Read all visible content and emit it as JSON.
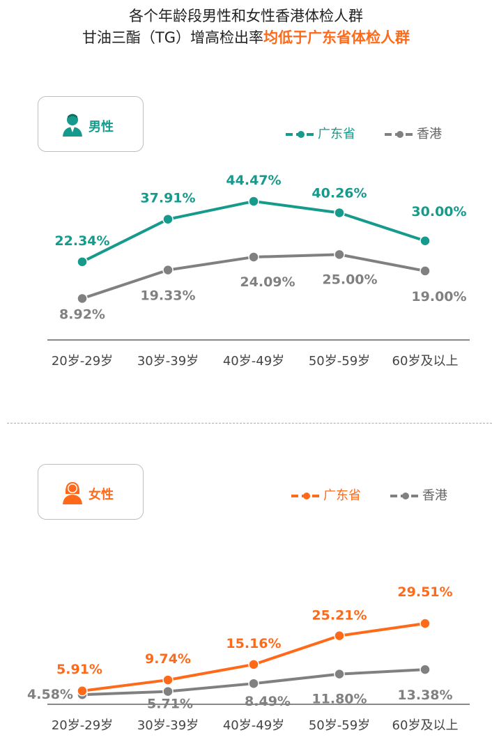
{
  "title": {
    "line1": "各个年龄段男性和女性香港体检人群",
    "line2_prefix": "甘油三酯（TG）增高检出率",
    "line2_highlight": "均低于广东省体检人群"
  },
  "colors": {
    "male_accent": "#159a8c",
    "female_accent": "#ff6a1a",
    "hongkong": "#808080",
    "axis": "#888888"
  },
  "panels": {
    "male": {
      "label": "男性",
      "icon": "male-person-icon",
      "legend": {
        "guangdong": "广东省",
        "hongkong": "香港"
      }
    },
    "female": {
      "label": "女性",
      "icon": "female-person-icon",
      "legend": {
        "guangdong": "广东省",
        "hongkong": "香港"
      }
    }
  },
  "chart_data": [
    {
      "type": "line",
      "categories": [
        "20岁-29岁",
        "30岁-39岁",
        "40岁-49岁",
        "50岁-59岁",
        "60岁及以上"
      ],
      "series": [
        {
          "name": "广东省",
          "values": [
            22.34,
            37.91,
            44.47,
            40.26,
            30.0
          ],
          "labels": [
            "22.34%",
            "37.91%",
            "44.47%",
            "40.26%",
            "30.00%"
          ]
        },
        {
          "name": "香港",
          "values": [
            8.92,
            19.33,
            24.09,
            25.0,
            19.0
          ],
          "labels": [
            "8.92%",
            "19.33%",
            "24.09%",
            "25.00%",
            "19.00%"
          ]
        }
      ]
    },
    {
      "type": "line",
      "categories": [
        "20岁-29岁",
        "30岁-39岁",
        "40岁-49岁",
        "50岁-59岁",
        "60岁及以上"
      ],
      "series": [
        {
          "name": "广东省",
          "values": [
            5.91,
            9.74,
            15.16,
            25.21,
            29.51
          ],
          "labels": [
            "5.91%",
            "9.74%",
            "15.16%",
            "25.21%",
            "29.51%"
          ]
        },
        {
          "name": "香港",
          "values": [
            4.58,
            5.71,
            8.49,
            11.8,
            13.38
          ],
          "labels": [
            "4.58%",
            "5.71%",
            "8.49%",
            "11.80%",
            "13.38%"
          ]
        }
      ]
    }
  ]
}
